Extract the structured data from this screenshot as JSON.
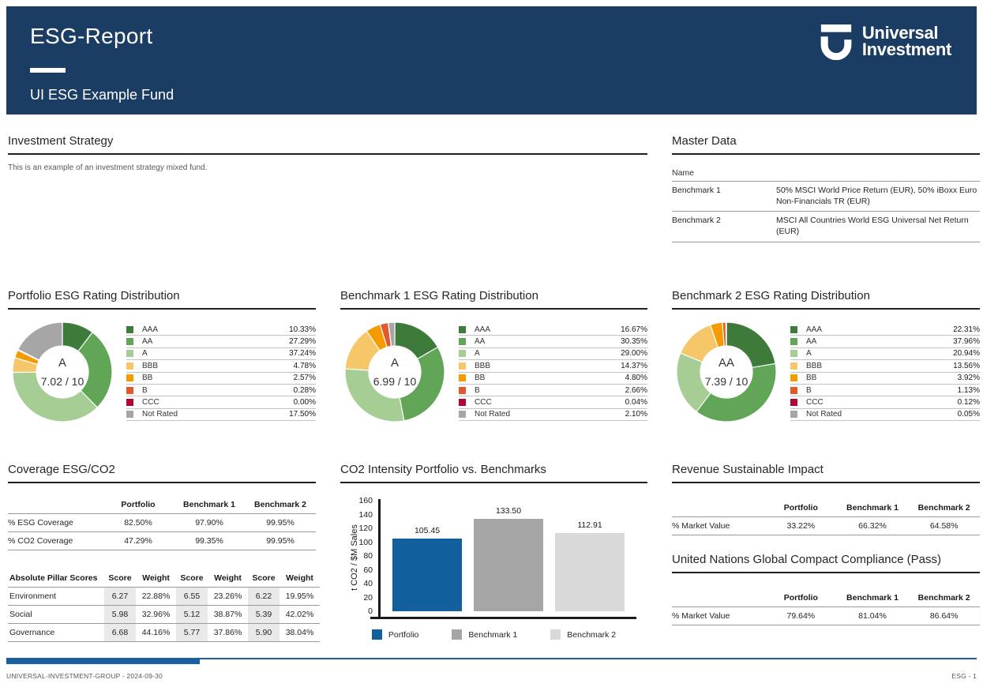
{
  "header": {
    "title": "ESG-Report",
    "fund_name": "UI ESG Example Fund",
    "logo_line1": "Universal",
    "logo_line2": "Investment"
  },
  "investment_strategy": {
    "title": "Investment Strategy",
    "text": "This is an example of an investment strategy mixed fund."
  },
  "master_data": {
    "title": "Master Data",
    "name_header": "Name",
    "rows": [
      {
        "label": "Benchmark 1",
        "value": "50% MSCI World Price Return (EUR), 50% iBoxx Euro Non-Financials TR (EUR)"
      },
      {
        "label": "Benchmark 2",
        "value": "MSCI All Countries World ESG Universal Net Return (EUR)"
      }
    ]
  },
  "chart_data": [
    {
      "type": "pie",
      "variant": "donut",
      "title": "Portfolio ESG Rating Distribution",
      "center_rating": "A",
      "center_score": "7.02 / 10",
      "categories": [
        "AAA",
        "AA",
        "A",
        "BBB",
        "BB",
        "B",
        "CCC",
        "Not Rated"
      ],
      "values": [
        10.33,
        27.29,
        37.24,
        4.78,
        2.57,
        0.28,
        0.0,
        17.5
      ],
      "labels": [
        "10.33%",
        "27.29%",
        "37.24%",
        "4.78%",
        "2.57%",
        "0.28%",
        "0.00%",
        "17.50%"
      ],
      "colors": [
        "#3e7b3a",
        "#61a656",
        "#a6cd94",
        "#f6c768",
        "#f59b00",
        "#e2572b",
        "#b00637",
        "#a6a6a6"
      ],
      "legend_position": "right"
    },
    {
      "type": "pie",
      "variant": "donut",
      "title": "Benchmark 1 ESG Rating Distribution",
      "center_rating": "A",
      "center_score": "6.99 / 10",
      "categories": [
        "AAA",
        "AA",
        "A",
        "BBB",
        "BB",
        "B",
        "CCC",
        "Not Rated"
      ],
      "values": [
        16.67,
        30.35,
        29.0,
        14.37,
        4.8,
        2.66,
        0.04,
        2.1
      ],
      "labels": [
        "16.67%",
        "30.35%",
        "29.00%",
        "14.37%",
        "4.80%",
        "2.66%",
        "0.04%",
        "2.10%"
      ],
      "colors": [
        "#3e7b3a",
        "#61a656",
        "#a6cd94",
        "#f6c768",
        "#f59b00",
        "#e2572b",
        "#b00637",
        "#a6a6a6"
      ],
      "legend_position": "right"
    },
    {
      "type": "pie",
      "variant": "donut",
      "title": "Benchmark 2 ESG Rating Distribution",
      "center_rating": "AA",
      "center_score": "7.39 / 10",
      "categories": [
        "AAA",
        "AA",
        "A",
        "BBB",
        "BB",
        "B",
        "CCC",
        "Not Rated"
      ],
      "values": [
        22.31,
        37.96,
        20.94,
        13.56,
        3.92,
        1.13,
        0.12,
        0.05
      ],
      "labels": [
        "22.31%",
        "37.96%",
        "20.94%",
        "13.56%",
        "3.92%",
        "1.13%",
        "0.12%",
        "0.05%"
      ],
      "colors": [
        "#3e7b3a",
        "#61a656",
        "#a6cd94",
        "#f6c768",
        "#f59b00",
        "#e2572b",
        "#b00637",
        "#a6a6a6"
      ],
      "legend_position": "right"
    },
    {
      "type": "bar",
      "title": "CO2 Intensity Portfolio vs. Benchmarks",
      "categories": [
        "Portfolio",
        "Benchmark 1",
        "Benchmark 2"
      ],
      "values": [
        105.45,
        133.5,
        112.91
      ],
      "labels": [
        "105.45",
        "133.50",
        "112.91"
      ],
      "colors": [
        "#115f9c",
        "#a6a6a6",
        "#d9d9d9"
      ],
      "xlabel": "",
      "ylabel": "t CO2 / $M Sales",
      "ylim": [
        0,
        160
      ],
      "ytick_step": 20,
      "grid": false,
      "legend_position": "bottom"
    }
  ],
  "coverage": {
    "title": "Coverage ESG/CO2",
    "columns": [
      "Portfolio",
      "Benchmark 1",
      "Benchmark 2"
    ],
    "rows": [
      {
        "label": "% ESG Coverage",
        "values": [
          "82.50%",
          "97.90%",
          "99.95%"
        ]
      },
      {
        "label": "% CO2 Coverage",
        "values": [
          "47.29%",
          "99.35%",
          "99.95%"
        ]
      }
    ],
    "pillar_table": {
      "header": "Absolute Pillar Scores",
      "subcolumns": [
        "Score",
        "Weight",
        "Score",
        "Weight",
        "Score",
        "Weight"
      ],
      "rows": [
        {
          "label": "Environment",
          "values": [
            "6.27",
            "22.88%",
            "6.55",
            "23.26%",
            "6.22",
            "19.95%"
          ]
        },
        {
          "label": "Social",
          "values": [
            "5.98",
            "32.96%",
            "5.12",
            "38.87%",
            "5.39",
            "42.02%"
          ]
        },
        {
          "label": "Governance",
          "values": [
            "6.68",
            "44.16%",
            "5.77",
            "37.86%",
            "5.90",
            "38.04%"
          ]
        }
      ]
    }
  },
  "revenue_sustainable_impact": {
    "title": "Revenue Sustainable Impact",
    "columns": [
      "Portfolio",
      "Benchmark 1",
      "Benchmark 2"
    ],
    "rows": [
      {
        "label": "% Market Value",
        "values": [
          "33.22%",
          "66.32%",
          "64.58%"
        ]
      }
    ]
  },
  "un_global_compact": {
    "title": "United Nations Global Compact Compliance (Pass)",
    "columns": [
      "Portfolio",
      "Benchmark 1",
      "Benchmark 2"
    ],
    "rows": [
      {
        "label": "% Market Value",
        "values": [
          "79.64%",
          "81.04%",
          "86.64%"
        ]
      }
    ]
  },
  "footer": {
    "left": "UNIVERSAL-INVESTMENT-GROUP - 2024-09-30",
    "right": "ESG - 1"
  },
  "colors": {
    "header_bg": "#1c3d63",
    "footer_blue": "#1a5fa0",
    "portfolio_bar": "#115f9c",
    "benchmark1_bar": "#a6a6a6",
    "benchmark2_bar": "#d9d9d9"
  }
}
